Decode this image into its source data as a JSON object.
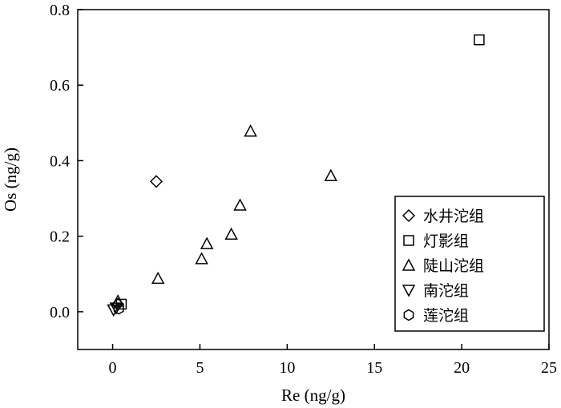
{
  "chart_data": {
    "type": "scatter",
    "title": "",
    "xlabel": "Re (ng/g)",
    "ylabel": "Os (ng/g)",
    "xlim": [
      -2,
      25
    ],
    "ylim": [
      -0.1,
      0.8
    ],
    "x_ticks": [
      0,
      5,
      10,
      15,
      20,
      25
    ],
    "y_ticks": [
      0.0,
      0.2,
      0.4,
      0.6,
      0.8
    ],
    "x_tick_labels": [
      "0",
      "5",
      "10",
      "15",
      "20",
      "25"
    ],
    "y_tick_labels": [
      "0.0",
      "0.2",
      "0.4",
      "0.6",
      "0.8"
    ],
    "grid": false,
    "legend_position": "bottom-right",
    "series": [
      {
        "name": "水井沱组",
        "marker": "diamond",
        "points": [
          [
            2.5,
            0.345
          ],
          [
            0.3,
            0.02
          ]
        ]
      },
      {
        "name": "灯影组",
        "marker": "square",
        "points": [
          [
            21.0,
            0.72
          ],
          [
            0.5,
            0.02
          ]
        ]
      },
      {
        "name": "陡山沱组",
        "marker": "triangle-up",
        "points": [
          [
            7.9,
            0.478
          ],
          [
            12.5,
            0.36
          ],
          [
            7.3,
            0.282
          ],
          [
            6.8,
            0.205
          ],
          [
            5.4,
            0.18
          ],
          [
            5.1,
            0.14
          ],
          [
            2.6,
            0.088
          ],
          [
            0.3,
            0.028
          ]
        ]
      },
      {
        "name": "南沱组",
        "marker": "triangle-down",
        "points": [
          [
            0.05,
            0.005
          ],
          [
            0.2,
            0.01
          ]
        ]
      },
      {
        "name": "莲沱组",
        "marker": "hexagon",
        "points": [
          [
            0.35,
            0.008
          ]
        ]
      }
    ]
  }
}
